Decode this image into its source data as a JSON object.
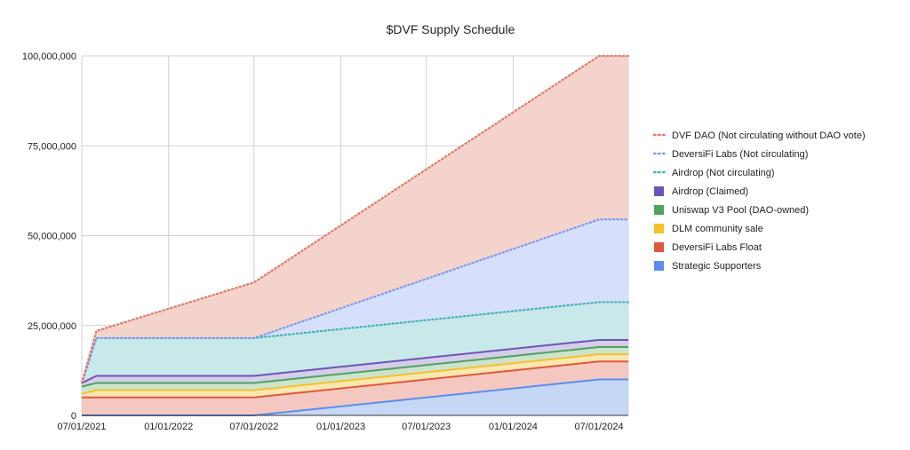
{
  "chart_data": {
    "type": "area",
    "title": "$DVF Supply Schedule",
    "xlabel": "",
    "ylabel": "",
    "x_range": [
      "07/01/2021",
      "09/01/2024"
    ],
    "ylim": [
      0,
      100000000
    ],
    "x_ticks": [
      "07/01/2021",
      "01/01/2022",
      "07/01/2022",
      "01/01/2023",
      "07/01/2023",
      "01/01/2024",
      "07/01/2024"
    ],
    "y_ticks": [
      0,
      25000000,
      50000000,
      75000000,
      100000000
    ],
    "y_tick_labels": [
      "0",
      "25,000,000",
      "50,000,000",
      "75,000,000",
      "100,000,000"
    ],
    "grid": true,
    "legend_position": "right",
    "stacked": true,
    "x": [
      "07/01/2021",
      "08/01/2021",
      "07/01/2022",
      "07/01/2024",
      "09/01/2024"
    ],
    "series": [
      {
        "name": "Strategic Supporters",
        "style": "solid",
        "color": "#5b8def",
        "fill": "#c6d7f6",
        "values": [
          0,
          0,
          0,
          10000000,
          10000000
        ]
      },
      {
        "name": "DeversiFi Labs Float",
        "style": "solid",
        "color": "#e0573b",
        "fill": "#f4c8c0",
        "values": [
          5000000,
          5000000,
          5000000,
          5000000,
          5000000
        ]
      },
      {
        "name": "DLM community sale",
        "style": "solid",
        "color": "#f6c12c",
        "fill": "#fbe7b2",
        "values": [
          1000000,
          2000000,
          2000000,
          2000000,
          2000000
        ]
      },
      {
        "name": "Uniswap V3 Pool (DAO-owned)",
        "style": "solid",
        "color": "#4fa45e",
        "fill": "#cce4cc",
        "values": [
          2000000,
          2000000,
          2000000,
          2000000,
          2000000
        ]
      },
      {
        "name": "Airdrop (Claimed)",
        "style": "solid",
        "color": "#6c55b8",
        "fill": "#d6cde8",
        "values": [
          1000000,
          2000000,
          2000000,
          2000000,
          2000000
        ]
      },
      {
        "name": "Airdrop (Not circulating)",
        "style": "dotted",
        "color": "#46b3b8",
        "fill": "#c9e8ea",
        "values": [
          0,
          10500000,
          10500000,
          10500000,
          10500000
        ]
      },
      {
        "name": "DeversiFi Labs (Not circulating)",
        "style": "dotted",
        "color": "#7d9cf0",
        "fill": "#d7e0fb",
        "values": [
          0,
          0,
          0,
          23000000,
          23000000
        ]
      },
      {
        "name": "DVF DAO (Not circulating without DAO vote)",
        "style": "dotted",
        "color": "#e07b6a",
        "fill": "#f4d3cd",
        "values": [
          0,
          2000000,
          15500000,
          45500000,
          45500000
        ]
      }
    ],
    "legend_order": [
      "DVF DAO (Not circulating without DAO vote)",
      "DeversiFi Labs (Not circulating)",
      "Airdrop (Not circulating)",
      "Airdrop (Claimed)",
      "Uniswap V3 Pool (DAO-owned)",
      "DLM community sale",
      "DeversiFi Labs Float",
      "Strategic Supporters"
    ]
  }
}
